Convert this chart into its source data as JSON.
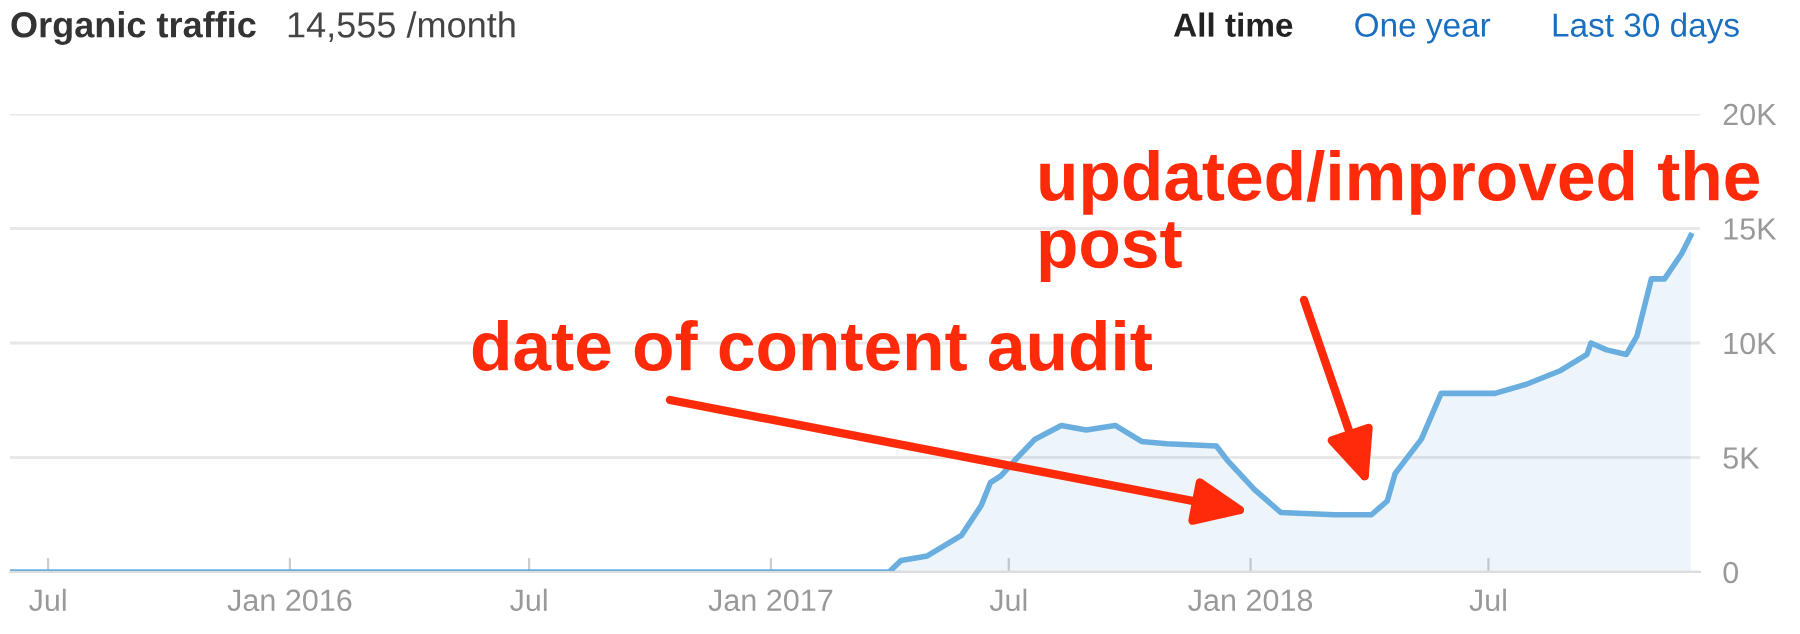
{
  "chart_data": {
    "type": "area",
    "title": "Organic traffic",
    "subtitle": "14,555 /month",
    "series": [
      {
        "color": "#6aaee0",
        "x": [
          "2015-06-02",
          "2017-04-01",
          "2017-04-10",
          "2017-04-30",
          "2017-05-26",
          "2017-06-10",
          "2017-06-17",
          "2017-06-25",
          "2017-07-06",
          "2017-07-21",
          "2017-08-10",
          "2017-08-29",
          "2017-09-20",
          "2017-10-10",
          "2017-10-29",
          "2017-12-06",
          "2017-12-14",
          "2018-01-04",
          "2018-01-24",
          "2018-03-06",
          "2018-04-03",
          "2018-04-15",
          "2018-04-21",
          "2018-04-25",
          "2018-05-11",
          "2018-05-26",
          "2018-07-06",
          "2018-07-30",
          "2018-08-25",
          "2018-09-14",
          "2018-09-17",
          "2018-09-29",
          "2018-10-14",
          "2018-10-22",
          "2018-11-02",
          "2018-11-12",
          "2018-11-25",
          "2018-12-02"
        ],
        "values": [
          0,
          0,
          500,
          700,
          1600,
          2900,
          3900,
          4200,
          4900,
          5800,
          6400,
          6200,
          6400,
          5700,
          5600,
          5500,
          4900,
          3600,
          2600,
          2500,
          2500,
          3100,
          4300,
          4600,
          5800,
          7800,
          7800,
          8200,
          8800,
          9500,
          10000,
          9700,
          9500,
          10300,
          12800,
          12800,
          13900,
          14700
        ]
      }
    ],
    "xlim": [
      "2015-06-02",
      "2018-12-09"
    ],
    "xticks": [
      {
        "value": "2015-07-01",
        "label": "Jul"
      },
      {
        "value": "2016-01-01",
        "label": "Jan 2016"
      },
      {
        "value": "2016-07-01",
        "label": "Jul"
      },
      {
        "value": "2017-01-01",
        "label": "Jan 2017"
      },
      {
        "value": "2017-07-01",
        "label": "Jul"
      },
      {
        "value": "2018-01-01",
        "label": "Jan 2018"
      },
      {
        "value": "2018-07-01",
        "label": "Jul"
      }
    ],
    "ylim": [
      0,
      20000
    ],
    "yticks": [
      {
        "value": 0,
        "label": "0"
      },
      {
        "value": 5000,
        "label": "5K"
      },
      {
        "value": 10000,
        "label": "10K"
      },
      {
        "value": 15000,
        "label": "15K"
      },
      {
        "value": 20000,
        "label": "20K"
      }
    ],
    "grid": "y",
    "legend": false,
    "annotations": [
      "date of content audit",
      "updated/improved the post",
      "All time",
      "One year",
      "Last 30 days"
    ]
  }
}
